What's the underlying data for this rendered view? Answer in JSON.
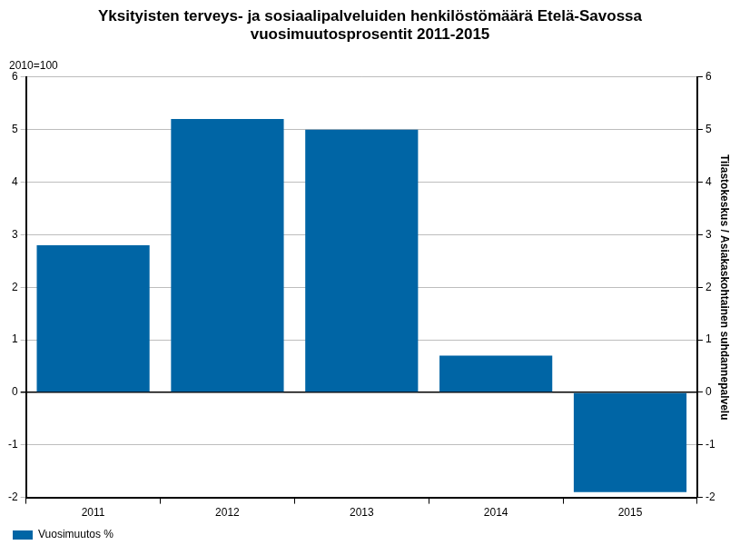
{
  "chart_data": {
    "type": "bar",
    "title": [
      "Yksityisten terveys- ja sosiaalipalveluiden henkilöstömäärä Etelä-Savossa",
      "vuosimuutosprosentit 2011-2015"
    ],
    "ylabel": "2010=100",
    "y2label": "Tilastokeskus / Asiakaskohtainen suhdannepalvelu",
    "categories": [
      "2011",
      "2012",
      "2013",
      "2014",
      "2015"
    ],
    "series": [
      {
        "name": "Vuosimuutos %",
        "color": "#0065a5",
        "values": [
          2.8,
          5.2,
          5.0,
          0.7,
          -1.9
        ]
      }
    ],
    "ylim": [
      -2,
      6
    ],
    "yticks": [
      -2,
      -1,
      0,
      1,
      2,
      3,
      4,
      5,
      6
    ],
    "y2lim": [
      -2,
      6
    ],
    "y2ticks": [
      -2,
      -1,
      0,
      1,
      2,
      3,
      4,
      5,
      6
    ],
    "grid": true,
    "legend": "bottom"
  }
}
